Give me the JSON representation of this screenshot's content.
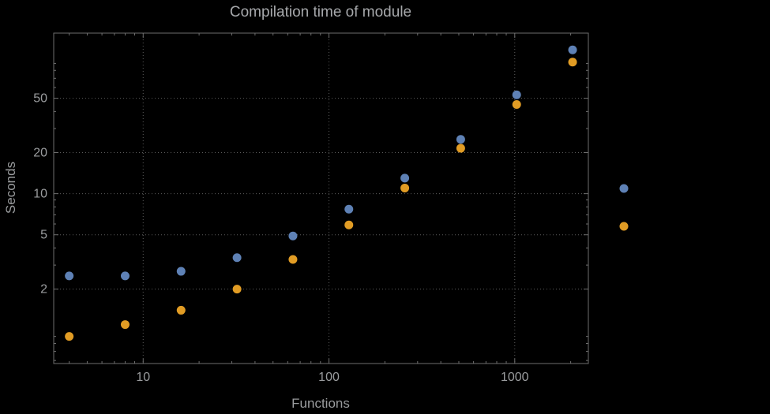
{
  "colors": {
    "background": "#000000",
    "text": "#9a9c9e",
    "title": "#a6a8ab",
    "grid": "#5c5c5c",
    "frame": "#6e6e6e",
    "series_blue": "#5e81b5",
    "series_orange": "#e19c24"
  },
  "chart_data": {
    "type": "scatter",
    "title": "Compilation time of module",
    "xlabel": "Functions",
    "ylabel": "Seconds",
    "x_scale": "log",
    "y_scale": "log",
    "grid": true,
    "legend_position": "right",
    "x_ticks": [
      10,
      100,
      1000
    ],
    "y_ticks": [
      2,
      5,
      10,
      20,
      50
    ],
    "xlim": [
      3.3,
      2490
    ],
    "ylim": [
      0.57,
      150
    ],
    "series": [
      {
        "name": "series-blue",
        "color": "#5e81b5",
        "x": [
          4,
          8,
          16,
          32,
          64,
          128,
          256,
          512,
          1024,
          2048
        ],
        "y": [
          2.5,
          2.5,
          2.7,
          3.4,
          4.9,
          7.7,
          13,
          25,
          53,
          113
        ]
      },
      {
        "name": "series-orange",
        "color": "#e19c24",
        "x": [
          4,
          8,
          16,
          32,
          64,
          128,
          256,
          512,
          1024,
          2048
        ],
        "y": [
          0.9,
          1.1,
          1.4,
          2.0,
          3.3,
          5.9,
          11,
          21.5,
          45,
          92
        ]
      }
    ],
    "legend_markers": [
      {
        "name": "legend-marker-blue",
        "color": "#5e81b5"
      },
      {
        "name": "legend-marker-orange",
        "color": "#e19c24"
      }
    ]
  }
}
